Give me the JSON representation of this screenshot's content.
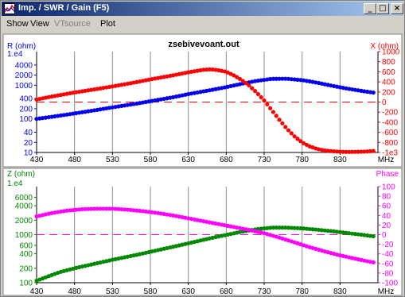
{
  "window": {
    "title": "Imp. / SWR / Gain  (F5)"
  },
  "menu": [
    {
      "label": "Show",
      "enabled": true
    },
    {
      "label": "View",
      "enabled": true
    },
    {
      "label": "VTsource",
      "enabled": false
    },
    {
      "label": "Plot",
      "enabled": true
    }
  ],
  "colors": {
    "blue": "#0000ee",
    "red": "#ff0000",
    "green": "#008800",
    "magenta": "#ff00ff",
    "grid": "#8c8c8c"
  },
  "chart_data": [
    {
      "type": "line",
      "title": "zsebivevoant.out",
      "xlabel": "MHz",
      "x_ticks": [
        430,
        480,
        530,
        580,
        630,
        680,
        730,
        780,
        830
      ],
      "xlim": [
        430,
        880
      ],
      "left_axis": {
        "label": "R (ohm)",
        "top_label": "1.e4",
        "scale": "log",
        "ylim": [
          10,
          10000
        ],
        "ticks": [
          {
            "v": 4000,
            "label": "4000"
          },
          {
            "v": 2000,
            "label": "2000"
          },
          {
            "v": 1000,
            "label": "1000"
          },
          {
            "v": 400,
            "label": "400"
          },
          {
            "v": 200,
            "label": "200"
          },
          {
            "v": 100,
            "label": "100"
          },
          {
            "v": 40,
            "label": "40"
          },
          {
            "v": 20,
            "label": "20"
          },
          {
            "v": 10,
            "label": "10"
          }
        ]
      },
      "right_axis": {
        "label": "X (ohm)",
        "scale": "linear",
        "ylim": [
          -1000,
          1000
        ],
        "ticks": [
          {
            "v": 1000,
            "label": "1000"
          },
          {
            "v": 800,
            "label": "800"
          },
          {
            "v": 600,
            "label": "600"
          },
          {
            "v": 400,
            "label": "400"
          },
          {
            "v": 200,
            "label": "200"
          },
          {
            "v": 0,
            "label": "0"
          },
          {
            "v": -200,
            "label": "-200"
          },
          {
            "v": -400,
            "label": "-400"
          },
          {
            "v": -600,
            "label": "-600"
          },
          {
            "v": -800,
            "label": "-800"
          },
          {
            "v": -1000,
            "label": "-1e3"
          }
        ]
      },
      "reference_line": {
        "axis": "right",
        "value": 0,
        "color": "#ff0000"
      },
      "series": [
        {
          "name": "R",
          "axis": "left",
          "color": "#0000ee",
          "points": [
            [
              430,
              100
            ],
            [
              450,
              115
            ],
            [
              480,
              145
            ],
            [
              510,
              185
            ],
            [
              530,
              220
            ],
            [
              560,
              280
            ],
            [
              580,
              335
            ],
            [
              610,
              440
            ],
            [
              630,
              545
            ],
            [
              660,
              720
            ],
            [
              680,
              880
            ],
            [
              700,
              1100
            ],
            [
              720,
              1350
            ],
            [
              740,
              1550
            ],
            [
              760,
              1560
            ],
            [
              780,
              1420
            ],
            [
              800,
              1190
            ],
            [
              820,
              960
            ],
            [
              840,
              790
            ],
            [
              860,
              670
            ],
            [
              875,
              600
            ]
          ]
        },
        {
          "name": "X",
          "axis": "right",
          "color": "#ff0000",
          "points": [
            [
              430,
              50
            ],
            [
              450,
              110
            ],
            [
              480,
              190
            ],
            [
              510,
              260
            ],
            [
              530,
              310
            ],
            [
              560,
              390
            ],
            [
              580,
              450
            ],
            [
              610,
              530
            ],
            [
              630,
              590
            ],
            [
              650,
              640
            ],
            [
              660,
              650
            ],
            [
              670,
              630
            ],
            [
              680,
              600
            ],
            [
              690,
              530
            ],
            [
              700,
              440
            ],
            [
              710,
              330
            ],
            [
              720,
              190
            ],
            [
              730,
              30
            ],
            [
              740,
              -160
            ],
            [
              750,
              -350
            ],
            [
              760,
              -530
            ],
            [
              770,
              -680
            ],
            [
              780,
              -800
            ],
            [
              790,
              -880
            ],
            [
              800,
              -930
            ],
            [
              810,
              -960
            ],
            [
              820,
              -975
            ],
            [
              830,
              -985
            ],
            [
              840,
              -990
            ],
            [
              860,
              -985
            ],
            [
              875,
              -970
            ]
          ]
        }
      ]
    },
    {
      "type": "line",
      "title": "",
      "xlabel": "MHz",
      "x_ticks": [
        430,
        480,
        530,
        580,
        630,
        680,
        730,
        780,
        830
      ],
      "xlim": [
        430,
        880
      ],
      "left_axis": {
        "label": "Z (ohm)",
        "top_label": "1.e4",
        "scale": "log",
        "ylim": [
          100,
          10000
        ],
        "ticks": [
          {
            "v": 6000,
            "label": "6000"
          },
          {
            "v": 4000,
            "label": "4000"
          },
          {
            "v": 2000,
            "label": "2000"
          },
          {
            "v": 1000,
            "label": "1000"
          },
          {
            "v": 600,
            "label": "600"
          },
          {
            "v": 400,
            "label": "400"
          },
          {
            "v": 200,
            "label": "200"
          },
          {
            "v": 100,
            "label": "100"
          }
        ]
      },
      "right_axis": {
        "label": "Phase",
        "scale": "linear",
        "ylim": [
          -100,
          100
        ],
        "ticks": [
          {
            "v": 100,
            "label": "100"
          },
          {
            "v": 80,
            "label": "80"
          },
          {
            "v": 60,
            "label": "60"
          },
          {
            "v": 40,
            "label": "40"
          },
          {
            "v": 20,
            "label": "20"
          },
          {
            "v": 0,
            "label": "0"
          },
          {
            "v": -20,
            "label": "-20"
          },
          {
            "v": -40,
            "label": "-40"
          },
          {
            "v": -60,
            "label": "-60"
          },
          {
            "v": -80,
            "label": "-80"
          },
          {
            "v": -100,
            "label": "-100"
          }
        ]
      },
      "reference_line": {
        "axis": "right",
        "value": 0,
        "color": "#ff00ff"
      },
      "series": [
        {
          "name": "Z",
          "axis": "left",
          "color": "#008800",
          "points": [
            [
              430,
              110
            ],
            [
              445,
              135
            ],
            [
              460,
              165
            ],
            [
              480,
              200
            ],
            [
              510,
              255
            ],
            [
              530,
              300
            ],
            [
              560,
              375
            ],
            [
              580,
              440
            ],
            [
              610,
              560
            ],
            [
              630,
              660
            ],
            [
              660,
              850
            ],
            [
              680,
              990
            ],
            [
              700,
              1150
            ],
            [
              720,
              1300
            ],
            [
              740,
              1400
            ],
            [
              760,
              1400
            ],
            [
              780,
              1350
            ],
            [
              800,
              1270
            ],
            [
              820,
              1180
            ],
            [
              840,
              1080
            ],
            [
              860,
              990
            ],
            [
              875,
              920
            ]
          ]
        },
        {
          "name": "Phase",
          "axis": "right",
          "color": "#ff00ff",
          "points": [
            [
              430,
              38
            ],
            [
              450,
              45
            ],
            [
              470,
              50
            ],
            [
              490,
              53
            ],
            [
              510,
              54
            ],
            [
              530,
              54
            ],
            [
              550,
              52
            ],
            [
              570,
              49
            ],
            [
              590,
              45
            ],
            [
              610,
              40
            ],
            [
              630,
              34
            ],
            [
              650,
              28
            ],
            [
              670,
              22
            ],
            [
              690,
              16
            ],
            [
              710,
              10
            ],
            [
              730,
              3
            ],
            [
              750,
              -6
            ],
            [
              770,
              -16
            ],
            [
              790,
              -26
            ],
            [
              810,
              -35
            ],
            [
              830,
              -43
            ],
            [
              850,
              -50
            ],
            [
              865,
              -55
            ],
            [
              875,
              -58
            ]
          ]
        }
      ]
    }
  ]
}
